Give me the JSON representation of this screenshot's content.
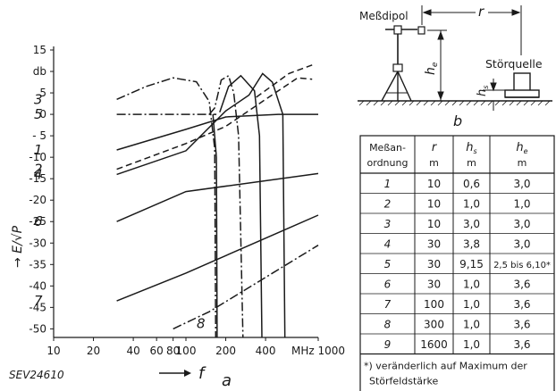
{
  "chart_data": [
    {
      "panel": "a",
      "type": "line",
      "xscale": "log",
      "xlim": [
        10,
        1000
      ],
      "ylim": [
        -52,
        15
      ],
      "xticks": [
        {
          "v": 10,
          "t": "10"
        },
        {
          "v": 20,
          "t": "20"
        },
        {
          "v": 40,
          "t": "40"
        },
        {
          "v": 60,
          "t": "60"
        },
        {
          "v": 80,
          "t": "80"
        },
        {
          "v": 100,
          "t": "100"
        },
        {
          "v": 200,
          "t": "200"
        },
        {
          "v": 400,
          "t": "400"
        },
        {
          "v": 1000,
          "t": "MHz 1000"
        }
      ],
      "yticks": [
        {
          "v": 15,
          "t": "15"
        },
        {
          "v": 10,
          "t": "db"
        },
        {
          "v": 5,
          "t": "5"
        },
        {
          "v": 0,
          "t": "0"
        },
        {
          "v": -5,
          "t": "- 5"
        },
        {
          "v": -10,
          "t": "-10"
        },
        {
          "v": -15,
          "t": "-15"
        },
        {
          "v": -20,
          "t": "-20"
        },
        {
          "v": -25,
          "t": "-25"
        },
        {
          "v": -30,
          "t": "-30"
        },
        {
          "v": -35,
          "t": "-35"
        },
        {
          "v": -40,
          "t": "-40"
        },
        {
          "v": -45,
          "t": "-45"
        },
        {
          "v": -50,
          "t": "-50"
        }
      ],
      "xlabel": "f",
      "ylabel": "E/√P",
      "panel_label": "a",
      "code": "SEV24610",
      "series": [
        {
          "name": "1",
          "style": "solid",
          "labelAt": [
            -8.3
          ],
          "points": [
            [
              30,
              -8.3
            ],
            [
              100,
              -3.5
            ],
            [
              200,
              -0.6
            ],
            [
              500,
              0
            ],
            [
              700,
              0
            ],
            [
              1000,
              0
            ]
          ]
        },
        {
          "name": "2",
          "style": "dashed",
          "labelAt": [
            -12.8
          ],
          "points": [
            [
              30,
              -12.8
            ],
            [
              100,
              -6.8
            ],
            [
              200,
              -2.8
            ],
            [
              400,
              3.5
            ],
            [
              700,
              8.5
            ],
            [
              900,
              8.2
            ]
          ]
        },
        {
          "name": "3",
          "style": "dashdot",
          "labelAt": [
            3.5
          ],
          "points": [
            [
              30,
              3.5
            ],
            [
              50,
              6.5
            ],
            [
              80,
              8.5
            ],
            [
              120,
              7.6
            ],
            [
              150,
              3.0
            ],
            [
              165,
              -8.0
            ],
            [
              168,
              -52
            ]
          ]
        },
        {
          "name": "4",
          "style": "solid",
          "labelAt": [
            -14.0
          ],
          "points": [
            [
              30,
              -14.0
            ],
            [
              100,
              -8.5
            ],
            [
              200,
              0.8
            ],
            [
              300,
              4.5
            ],
            [
              380,
              9.5
            ],
            [
              450,
              7.5
            ],
            [
              540,
              0.0
            ],
            [
              560,
              -52
            ]
          ]
        },
        {
          "name": "5",
          "style": "dashdot",
          "labelAt": [
            0
          ],
          "points": [
            [
              30,
              0
            ],
            [
              170,
              0
            ]
          ]
        },
        {
          "name": "5",
          "style": "dashdot",
          "labelAt": [],
          "points": [
            [
              150,
              0
            ],
            [
              165,
              1.5
            ],
            [
              185,
              8.0
            ],
            [
              210,
              9.0
            ],
            [
              230,
              5.0
            ],
            [
              250,
              -5.0
            ],
            [
              270,
              -52
            ]
          ]
        },
        {
          "name": "6",
          "style": "solid",
          "labelAt": [
            -25.0
          ],
          "points": [
            [
              30,
              -25.0
            ],
            [
              100,
              -18.0
            ],
            [
              1000,
              -13.8
            ]
          ]
        },
        {
          "name": "7",
          "style": "solid",
          "labelAt": [
            -43.5
          ],
          "points": [
            [
              30,
              -43.5
            ],
            [
              100,
              -37.0
            ],
            [
              1000,
              -23.5
            ]
          ]
        },
        {
          "name": "8",
          "style": "dashdot",
          "labelAt": [
            -48.8
          ],
          "points": [
            [
              80,
              -50.0
            ],
            [
              150,
              -46.0
            ],
            [
              1000,
              -30.5
            ]
          ]
        }
      ],
      "extra_curves": [
        {
          "style": "solid",
          "points": [
            [
              180,
              0.5
            ],
            [
              210,
              6.5
            ],
            [
              260,
              9.0
            ],
            [
              330,
              5.5
            ],
            [
              360,
              -5.0
            ],
            [
              375,
              -52
            ]
          ]
        },
        {
          "style": "dashed",
          "points": [
            [
              340,
              4.0
            ],
            [
              600,
              9.5
            ],
            [
              900,
              11.5
            ]
          ]
        },
        {
          "style": "solid",
          "points": [
            [
              160,
              0
            ],
            [
              170,
              -10
            ],
            [
              172,
              -52
            ]
          ]
        }
      ]
    }
  ],
  "diagram_b": {
    "labels": {
      "dipole": "Meßdipol",
      "r": "r",
      "source": "Störquelle",
      "he": "h",
      "he_sub": "e",
      "hs": "h",
      "hs_sub": "s",
      "panel": "b"
    }
  },
  "table": {
    "headers": [
      {
        "top": "Meßan-",
        "bottom": "ordnung"
      },
      {
        "top": "r",
        "bottom": "m"
      },
      {
        "top": "h",
        "sub": "s",
        "bottom": "m"
      },
      {
        "top": "h",
        "sub": "e",
        "bottom": "m"
      }
    ],
    "rows": [
      [
        "1",
        "10",
        "0,6",
        "3,0"
      ],
      [
        "2",
        "10",
        "1,0",
        "1,0"
      ],
      [
        "3",
        "10",
        "3,0",
        "3,0"
      ],
      [
        "4",
        "30",
        "3,8",
        "3,0"
      ],
      [
        "5",
        "30",
        "9,15",
        "2,5 bis 6,10*"
      ],
      [
        "6",
        "30",
        "1,0",
        "3,6"
      ],
      [
        "7",
        "100",
        "1,0",
        "3,6"
      ],
      [
        "8",
        "300",
        "1,0",
        "3,6"
      ],
      [
        "9",
        "1600",
        "1,0",
        "3,6"
      ]
    ],
    "footnote_line1": "*) veränderlich auf Maximum der",
    "footnote_line2": "Störfeldstärke"
  },
  "colors": {
    "ink": "#1a1a1a",
    "paper": "#ffffff"
  }
}
